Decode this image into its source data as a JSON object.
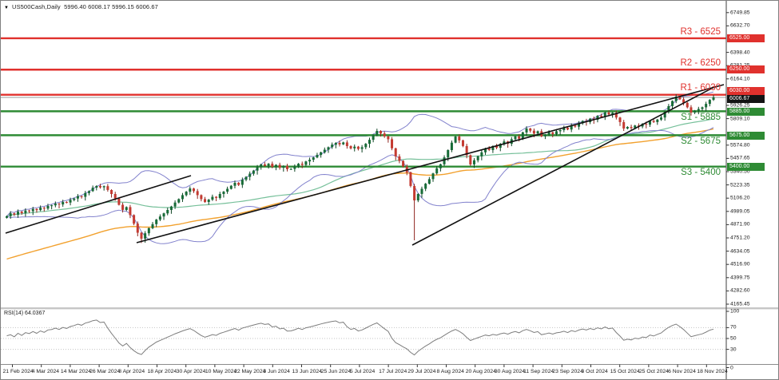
{
  "header": {
    "collapse_icon": "▼",
    "symbol": "US500Cash,Daily",
    "ohlc_text": "5996.40 6008.17 5996.15 6006.67"
  },
  "badges": {
    "r3": "6525.00",
    "r2": "6250.00",
    "r1": "6030.00",
    "price": "6006.67",
    "s1": "5885.00",
    "s2": "5675.00",
    "s3": "5400.00"
  },
  "rsi_panel": {
    "label": "RSI(14) 64.0367",
    "scale_labels": [
      "100",
      "70",
      "50",
      "30",
      "0"
    ]
  },
  "price_axis": {
    "ticks": [
      {
        "slot": 0,
        "label": "6749.85"
      },
      {
        "slot": 1,
        "label": "6632.70"
      },
      {
        "slot": 3,
        "label": "6398.40"
      },
      {
        "slot": 4,
        "label": "6281.25"
      },
      {
        "slot": 5,
        "label": "6164.10"
      },
      {
        "slot": 7,
        "label": "5926.25"
      },
      {
        "slot": 8,
        "label": "5809.10"
      },
      {
        "slot": 10,
        "label": "5574.80"
      },
      {
        "slot": 11,
        "label": "5457.65"
      },
      {
        "slot": 12,
        "label": "5340.50"
      },
      {
        "slot": 13,
        "label": "5223.35"
      },
      {
        "slot": 14,
        "label": "5106.20"
      },
      {
        "slot": 15,
        "label": "4989.05"
      },
      {
        "slot": 16,
        "label": "4871.90"
      },
      {
        "slot": 17,
        "label": "4751.20"
      },
      {
        "slot": 18,
        "label": "4634.05"
      },
      {
        "slot": 19,
        "label": "4516.90"
      },
      {
        "slot": 20,
        "label": "4399.75"
      },
      {
        "slot": 21,
        "label": "4282.60"
      },
      {
        "slot": 22,
        "label": "4165.45"
      }
    ]
  },
  "time_axis": {
    "dates": [
      "21 Feb 2024",
      "4 Mar 2024",
      "14 Mar 2024",
      "26 Mar 2024",
      "8 Apr 2024",
      "18 Apr 2024",
      "30 Apr 2024",
      "10 May 2024",
      "22 May 2024",
      "3 Jun 2024",
      "13 Jun 2024",
      "25 Jun 2024",
      "5 Jul 2024",
      "17 Jul 2024",
      "29 Jul 2024",
      "8 Aug 2024",
      "20 Aug 2024",
      "30 Aug 2024",
      "11 Sep 2024",
      "23 Sep 2024",
      "3 Oct 2024",
      "15 Oct 2024",
      "25 Oct 2024",
      "6 Nov 2024",
      "18 Nov 2024"
    ]
  },
  "colors": {
    "up": "#176b37",
    "up_wick": "#0d4423",
    "down": "#c43a31",
    "down_wick": "#8f241d",
    "resistance": "#e0312d",
    "support": "#2e8b34",
    "bollinger": "#8282cd",
    "sma": "#76c09a",
    "ema": "#f2a12e",
    "rsi_line": "#7d7d7d",
    "rsi_level": "#c4c4c4",
    "price_line": "#9a9a9a",
    "trendline": "#111111",
    "axis": "#5f5f5f"
  },
  "chart_data": {
    "type": "candlestick",
    "symbol": "US500Cash",
    "timeframe": "Daily",
    "ohlc_display": {
      "open": "5996.40",
      "high": "6008.17",
      "low": "5996.15",
      "close": "6006.67"
    },
    "levels": [
      {
        "id": "R3",
        "label": "R3 - 6525",
        "price": 6525,
        "kind": "resistance"
      },
      {
        "id": "R2",
        "label": "R2 - 6250",
        "price": 6250,
        "kind": "resistance"
      },
      {
        "id": "R1",
        "label": "R1 - 6030",
        "price": 6030,
        "kind": "resistance"
      },
      {
        "id": "S1",
        "label": "S1 - 5885",
        "price": 5885,
        "kind": "support"
      },
      {
        "id": "S2",
        "label": "S2 - 5675",
        "price": 5675,
        "kind": "support"
      },
      {
        "id": "S3",
        "label": "S3 - 5400",
        "price": 5400,
        "kind": "support"
      }
    ],
    "current_price": 6006.67,
    "candles": {
      "first_open": 4950,
      "closes": [
        4965,
        4990,
        4978,
        5005,
        4992,
        5015,
        5010,
        5028,
        5018,
        5040,
        5032,
        5055,
        5060,
        5075,
        5068,
        5090,
        5085,
        5108,
        5120,
        5140,
        5135,
        5168,
        5185,
        5215,
        5230,
        5218,
        5228,
        5195,
        5160,
        5120,
        5065,
        5020,
        5045,
        4975,
        4900,
        4820,
        4768,
        4815,
        4860,
        4895,
        4935,
        4962,
        4990,
        5020,
        5050,
        5085,
        5115,
        5150,
        5180,
        5208,
        5185,
        5150,
        5115,
        5090,
        5110,
        5135,
        5125,
        5160,
        5180,
        5205,
        5232,
        5258,
        5240,
        5285,
        5310,
        5338,
        5365,
        5395,
        5419,
        5408,
        5425,
        5398,
        5415,
        5390,
        5405,
        5378,
        5380,
        5400,
        5425,
        5415,
        5445,
        5460,
        5480,
        5502,
        5525,
        5548,
        5570,
        5592,
        5608,
        5595,
        5612,
        5580,
        5560,
        5575,
        5555,
        5570,
        5600,
        5635,
        5675,
        5713,
        5690,
        5665,
        5640,
        5560,
        5489,
        5450,
        5400,
        5350,
        5230,
        5104,
        5160,
        5205,
        5250,
        5290,
        5340,
        5385,
        5420,
        5480,
        5545,
        5610,
        5664,
        5630,
        5580,
        5500,
        5419,
        5455,
        5490,
        5525,
        5560,
        5545,
        5580,
        5565,
        5600,
        5620,
        5600,
        5640,
        5665,
        5645,
        5700,
        5734,
        5715,
        5690,
        5710,
        5665,
        5680,
        5700,
        5685,
        5710,
        5720,
        5740,
        5725,
        5760,
        5750,
        5780,
        5800,
        5790,
        5820,
        5810,
        5845,
        5835,
        5874,
        5858,
        5872,
        5830,
        5790,
        5734,
        5748,
        5738,
        5760,
        5752,
        5775,
        5768,
        5800,
        5790,
        5812,
        5830,
        5880,
        5930,
        5975,
        6014,
        5990,
        5960,
        5920,
        5874,
        5890,
        5905,
        5920,
        5950,
        5985,
        6007
      ],
      "wick_overrides": {
        "36": 4730,
        "109": 4754
      }
    },
    "overlays": {
      "bollinger": {
        "period": 20,
        "stdev": 2
      },
      "sma": {
        "period": 50
      },
      "ema": {
        "period": 80,
        "init": 4580
      }
    },
    "trendlines": [
      [
        6,
        291,
        238,
        219
      ],
      [
        170,
        303,
        905,
        105
      ],
      [
        515,
        306,
        893,
        108
      ]
    ],
    "rsi": {
      "period": 14,
      "value": 64.0367,
      "levels": [
        70,
        50,
        30
      ]
    }
  }
}
